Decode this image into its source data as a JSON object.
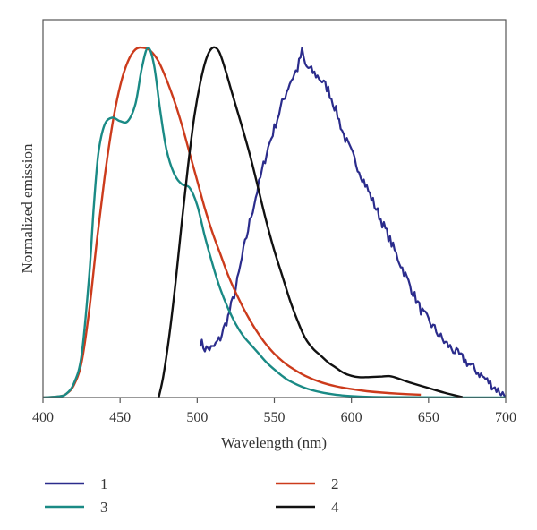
{
  "chart_data": {
    "type": "line",
    "title": "",
    "xlabel": "Wavelength (nm)",
    "ylabel": "Normalized emission",
    "xlim": [
      400,
      700
    ],
    "ylim": [
      0,
      1.08
    ],
    "x_ticks": [
      "400",
      "450",
      "500",
      "550",
      "600",
      "650",
      "700"
    ],
    "y_ticks": [],
    "grid": false,
    "legend_position": "bottom",
    "series": [
      {
        "name": "1",
        "color": "#2b2c8c",
        "noisy": true,
        "points": [
          [
            502,
            0.16
          ],
          [
            505,
            0.14
          ],
          [
            510,
            0.14
          ],
          [
            515,
            0.17
          ],
          [
            520,
            0.23
          ],
          [
            525,
            0.31
          ],
          [
            530,
            0.42
          ],
          [
            535,
            0.52
          ],
          [
            540,
            0.61
          ],
          [
            545,
            0.7
          ],
          [
            550,
            0.77
          ],
          [
            555,
            0.84
          ],
          [
            560,
            0.9
          ],
          [
            565,
            0.94
          ],
          [
            568,
            0.99
          ],
          [
            570,
            0.95
          ],
          [
            575,
            0.93
          ],
          [
            580,
            0.91
          ],
          [
            585,
            0.88
          ],
          [
            590,
            0.82
          ],
          [
            595,
            0.75
          ],
          [
            600,
            0.7
          ],
          [
            605,
            0.65
          ],
          [
            610,
            0.6
          ],
          [
            615,
            0.55
          ],
          [
            620,
            0.5
          ],
          [
            625,
            0.45
          ],
          [
            630,
            0.4
          ],
          [
            635,
            0.35
          ],
          [
            640,
            0.3
          ],
          [
            645,
            0.25
          ],
          [
            650,
            0.22
          ],
          [
            655,
            0.19
          ],
          [
            660,
            0.16
          ],
          [
            665,
            0.14
          ],
          [
            670,
            0.12
          ],
          [
            675,
            0.1
          ],
          [
            680,
            0.08
          ],
          [
            685,
            0.06
          ],
          [
            690,
            0.04
          ],
          [
            695,
            0.02
          ],
          [
            700,
            0.005
          ]
        ]
      },
      {
        "name": "2",
        "color": "#cc3b1c",
        "points": [
          [
            400,
            0
          ],
          [
            410,
            0.003
          ],
          [
            415,
            0.01
          ],
          [
            420,
            0.035
          ],
          [
            425,
            0.1
          ],
          [
            430,
            0.25
          ],
          [
            435,
            0.45
          ],
          [
            440,
            0.63
          ],
          [
            445,
            0.78
          ],
          [
            450,
            0.89
          ],
          [
            455,
            0.96
          ],
          [
            460,
            0.995
          ],
          [
            465,
            1.0
          ],
          [
            470,
            0.99
          ],
          [
            475,
            0.96
          ],
          [
            480,
            0.91
          ],
          [
            485,
            0.85
          ],
          [
            490,
            0.78
          ],
          [
            495,
            0.7
          ],
          [
            500,
            0.62
          ],
          [
            505,
            0.54
          ],
          [
            510,
            0.47
          ],
          [
            515,
            0.41
          ],
          [
            520,
            0.35
          ],
          [
            525,
            0.3
          ],
          [
            530,
            0.255
          ],
          [
            535,
            0.215
          ],
          [
            540,
            0.18
          ],
          [
            545,
            0.15
          ],
          [
            550,
            0.125
          ],
          [
            555,
            0.105
          ],
          [
            560,
            0.088
          ],
          [
            570,
            0.062
          ],
          [
            580,
            0.044
          ],
          [
            590,
            0.032
          ],
          [
            600,
            0.024
          ],
          [
            610,
            0.018
          ],
          [
            620,
            0.014
          ],
          [
            630,
            0.011
          ],
          [
            645,
            0.008
          ]
        ]
      },
      {
        "name": "3",
        "color": "#1a8a85",
        "points": [
          [
            400,
            0
          ],
          [
            410,
            0.003
          ],
          [
            415,
            0.01
          ],
          [
            420,
            0.04
          ],
          [
            425,
            0.12
          ],
          [
            430,
            0.35
          ],
          [
            433,
            0.55
          ],
          [
            436,
            0.7
          ],
          [
            440,
            0.78
          ],
          [
            445,
            0.8
          ],
          [
            450,
            0.79
          ],
          [
            455,
            0.79
          ],
          [
            460,
            0.84
          ],
          [
            464,
            0.94
          ],
          [
            468,
            1.0
          ],
          [
            472,
            0.95
          ],
          [
            476,
            0.82
          ],
          [
            480,
            0.71
          ],
          [
            485,
            0.64
          ],
          [
            490,
            0.61
          ],
          [
            495,
            0.6
          ],
          [
            500,
            0.55
          ],
          [
            505,
            0.46
          ],
          [
            510,
            0.38
          ],
          [
            515,
            0.31
          ],
          [
            520,
            0.255
          ],
          [
            525,
            0.21
          ],
          [
            530,
            0.175
          ],
          [
            535,
            0.15
          ],
          [
            540,
            0.125
          ],
          [
            545,
            0.1
          ],
          [
            550,
            0.08
          ],
          [
            555,
            0.062
          ],
          [
            560,
            0.047
          ],
          [
            570,
            0.027
          ],
          [
            580,
            0.015
          ],
          [
            590,
            0.008
          ],
          [
            600,
            0.004
          ],
          [
            620,
            0.001
          ],
          [
            700,
            0
          ]
        ]
      },
      {
        "name": "4",
        "color": "#111111",
        "points": [
          [
            475,
            0
          ],
          [
            478,
            0.06
          ],
          [
            482,
            0.18
          ],
          [
            486,
            0.33
          ],
          [
            490,
            0.5
          ],
          [
            494,
            0.66
          ],
          [
            498,
            0.8
          ],
          [
            502,
            0.9
          ],
          [
            506,
            0.97
          ],
          [
            510,
            1.0
          ],
          [
            514,
            0.99
          ],
          [
            518,
            0.94
          ],
          [
            522,
            0.88
          ],
          [
            526,
            0.82
          ],
          [
            530,
            0.76
          ],
          [
            535,
            0.68
          ],
          [
            540,
            0.59
          ],
          [
            545,
            0.5
          ],
          [
            550,
            0.42
          ],
          [
            555,
            0.35
          ],
          [
            560,
            0.28
          ],
          [
            565,
            0.22
          ],
          [
            570,
            0.17
          ],
          [
            575,
            0.14
          ],
          [
            580,
            0.12
          ],
          [
            585,
            0.1
          ],
          [
            590,
            0.085
          ],
          [
            595,
            0.07
          ],
          [
            600,
            0.062
          ],
          [
            605,
            0.058
          ],
          [
            610,
            0.058
          ],
          [
            615,
            0.059
          ],
          [
            620,
            0.06
          ],
          [
            625,
            0.061
          ],
          [
            630,
            0.055
          ],
          [
            635,
            0.047
          ],
          [
            640,
            0.04
          ],
          [
            650,
            0.027
          ],
          [
            660,
            0.014
          ],
          [
            672,
            0.001
          ]
        ]
      }
    ]
  }
}
